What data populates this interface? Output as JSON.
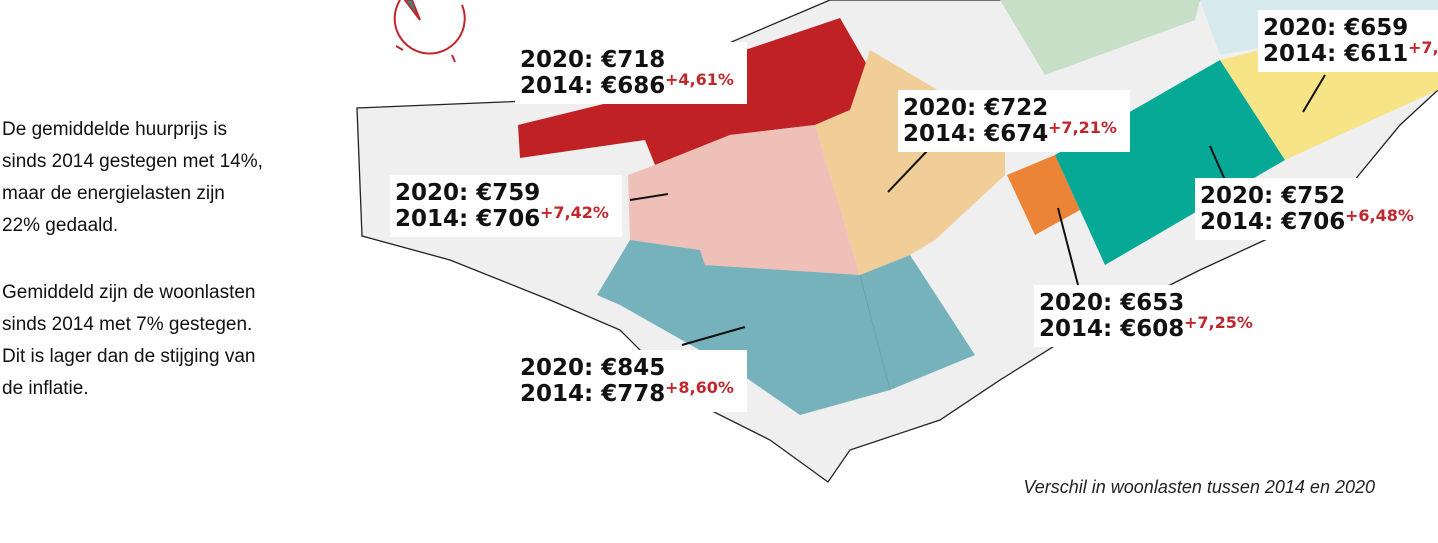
{
  "intro": [
    [
      "De gemiddelde huurprijs is",
      "sinds 2014 gestegen met 14%,",
      "maar de energielasten zijn",
      "22% gedaald."
    ],
    [
      "Gemiddeld zijn de woonlasten",
      "sinds 2014 met 7% gestegen.",
      "Dit is lager dan de stijging van",
      "de inflatie."
    ]
  ],
  "labels": [
    {
      "y2020": "2020: €718",
      "y2014": "2014: €686",
      "change": "+4,61%"
    },
    {
      "y2020": "2020: €722",
      "y2014": "2014: €674",
      "change": "+7,21%"
    },
    {
      "y2020": "2020: €759",
      "y2014": "2014: €706",
      "change": "+7,42%"
    },
    {
      "y2020": "2020: €659",
      "y2014": "2014: €611",
      "change": "+7,"
    },
    {
      "y2020": "2020: €752",
      "y2014": "2014: €706",
      "change": "+6,48%"
    },
    {
      "y2020": "2020: €653",
      "y2014": "2014: €608",
      "change": "+7,25%"
    },
    {
      "y2020": "2020: €845",
      "y2014": "2014: €778",
      "change": "+8,60%"
    }
  ],
  "caption": "Verschil in woonlasten tussen 2014 en 2020"
}
